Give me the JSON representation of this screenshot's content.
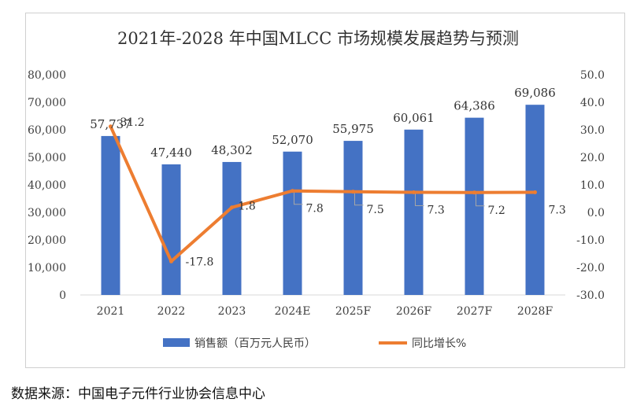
{
  "chart_data": {
    "type": "bar",
    "title": "2021年-2028 年中国MLCC 市场规模发展趋势与预测",
    "categories": [
      "2021",
      "2022",
      "2023",
      "2024E",
      "2025F",
      "2026F",
      "2027F",
      "2028F"
    ],
    "series": [
      {
        "name": "销售额（百万元人民币）",
        "type": "bar",
        "axis": "left",
        "color": "#4472C4",
        "values": [
          57737,
          47440,
          48302,
          52070,
          55975,
          60061,
          64386,
          69086
        ],
        "labels": [
          "57,737",
          "47,440",
          "48,302",
          "52,070",
          "55,975",
          "60,061",
          "64,386",
          "69,086"
        ]
      },
      {
        "name": "同比增长%",
        "type": "line",
        "axis": "right",
        "color": "#ED7D31",
        "values": [
          31.2,
          -17.8,
          1.8,
          7.8,
          7.5,
          7.3,
          7.2,
          7.3
        ],
        "labels": [
          "31.2",
          "-17.8",
          "1.8",
          "7.8",
          "7.5",
          "7.3",
          "7.2",
          "7.3"
        ]
      }
    ],
    "y_left": {
      "range": [
        0,
        80000
      ],
      "ticks": [
        "0",
        "10,000",
        "20,000",
        "30,000",
        "40,000",
        "50,000",
        "60,000",
        "70,000",
        "80,000"
      ]
    },
    "y_right": {
      "range": [
        -30,
        50
      ],
      "ticks": [
        "-30.0",
        "-20.0",
        "-10.0",
        "0.0",
        "10.0",
        "20.0",
        "30.0",
        "40.0",
        "50.0"
      ]
    },
    "grid": false,
    "legend_position": "bottom"
  },
  "source_note": "数据来源：中国电子元件行业协会信息中心"
}
